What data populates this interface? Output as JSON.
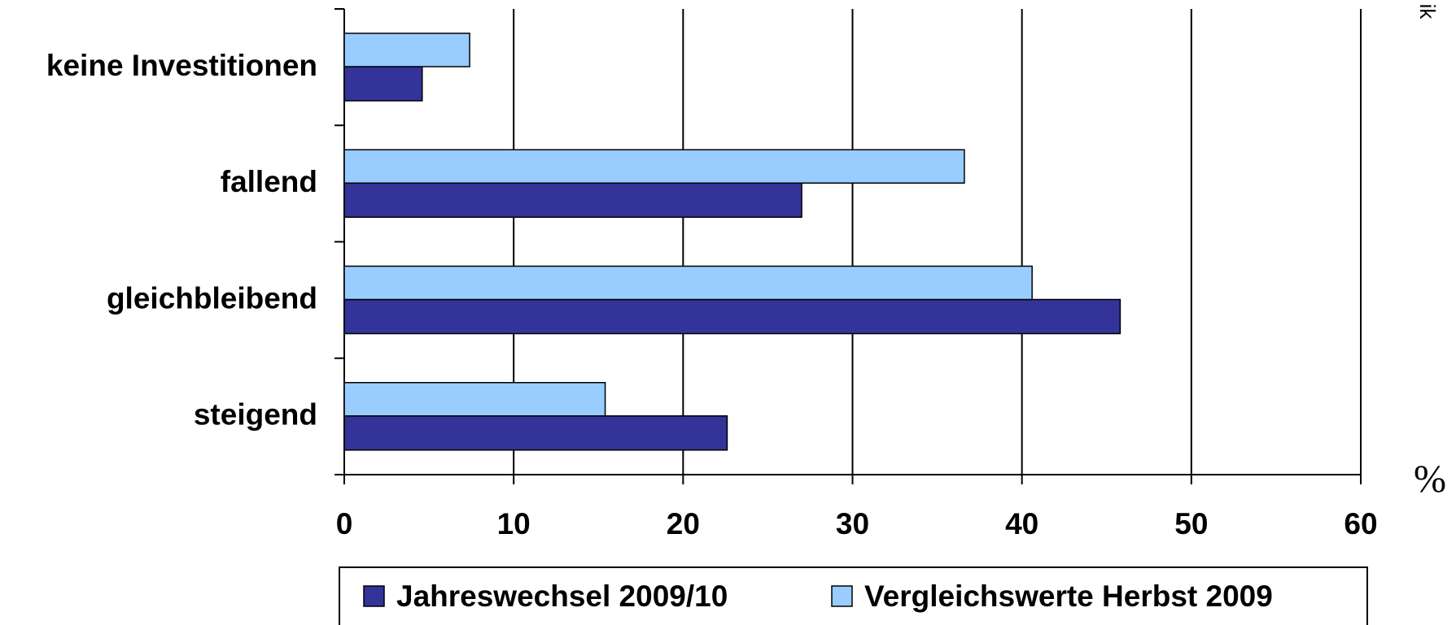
{
  "chart_data": {
    "type": "bar",
    "orientation": "horizontal",
    "categories": [
      "keine Investitionen",
      "fallend",
      "gleichbleibend",
      "steigend"
    ],
    "series": [
      {
        "name": "Jahreswechsel 2009/10",
        "color": "#333399",
        "values": [
          4.6,
          27,
          45.8,
          22.6
        ]
      },
      {
        "name": "Vergleichswerte Herbst 2009",
        "color": "#99ccff",
        "values": [
          7.4,
          36.6,
          40.6,
          15.4
        ]
      }
    ],
    "xlim": [
      0,
      60
    ],
    "xticks": [
      0,
      10,
      20,
      30,
      40,
      50,
      60
    ],
    "grid": true,
    "unit_label": "%",
    "annotation": "ik",
    "legend": "bottom"
  }
}
